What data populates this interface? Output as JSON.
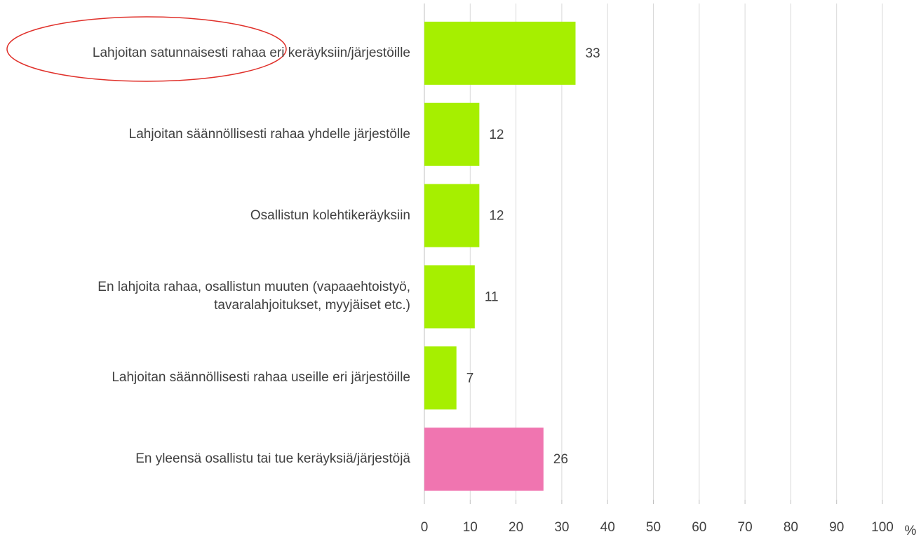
{
  "chart_data": {
    "type": "barh",
    "categories": [
      "Lahjoitan satunnaisesti rahaa eri keräyksiin/järjestöille",
      "Lahjoitan säännöllisesti rahaa yhdelle järjestölle",
      "Osallistun kolehtikeräyksiin",
      "En lahjoita rahaa, osallistun muuten (vapaaehtoistyö,\ntavaralahjoitukset, myyjäiset etc.)",
      "Lahjoitan säännöllisesti rahaa useille eri järjestöille",
      "En yleensä osallistu tai tue keräyksiä/järjestöjä"
    ],
    "values": [
      33,
      12,
      12,
      11,
      7,
      26
    ],
    "colors": [
      "#a6ef00",
      "#a6ef00",
      "#a6ef00",
      "#a6ef00",
      "#a6ef00",
      "#f075b0"
    ],
    "xlabel": "%",
    "xlim": [
      0,
      100
    ],
    "xticks": [
      0,
      10,
      20,
      30,
      40,
      50,
      60,
      70,
      80,
      90,
      100
    ],
    "grid": true
  }
}
